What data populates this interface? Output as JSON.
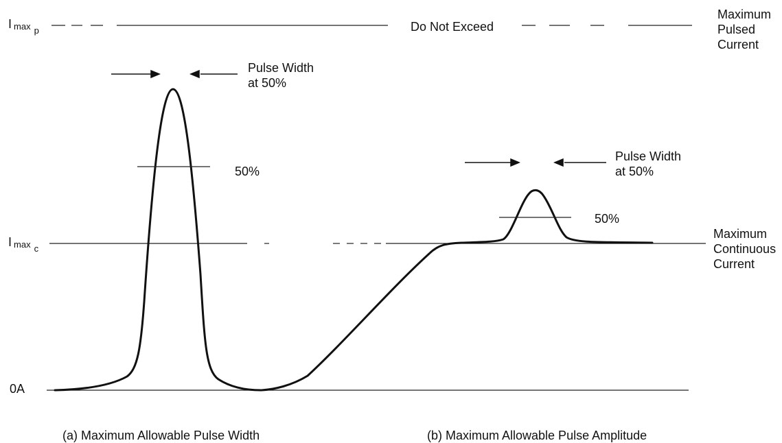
{
  "axis_labels": {
    "imax_pulsed": {
      "main": "I",
      "sub": "max",
      "subsub": "p"
    },
    "imax_continuous": {
      "main": "I",
      "sub": "max",
      "subsub": "c"
    },
    "zero": "0A"
  },
  "lines": {
    "do_not_exceed": "Do Not Exceed",
    "maximum_pulsed_current": [
      "Maximum",
      "Pulsed",
      "Current"
    ],
    "maximum_continuous_current": [
      "Maximum",
      "Continuous",
      "Current"
    ]
  },
  "pulse_a": {
    "width_label": [
      "Pulse Width",
      "at 50%"
    ],
    "half_label": "50%",
    "caption": "(a) Maximum Allowable Pulse Width"
  },
  "pulse_b": {
    "width_label": [
      "Pulse Width",
      "at 50%"
    ],
    "half_label": "50%",
    "caption": "(b) Maximum Allowable Pulse Amplitude"
  }
}
